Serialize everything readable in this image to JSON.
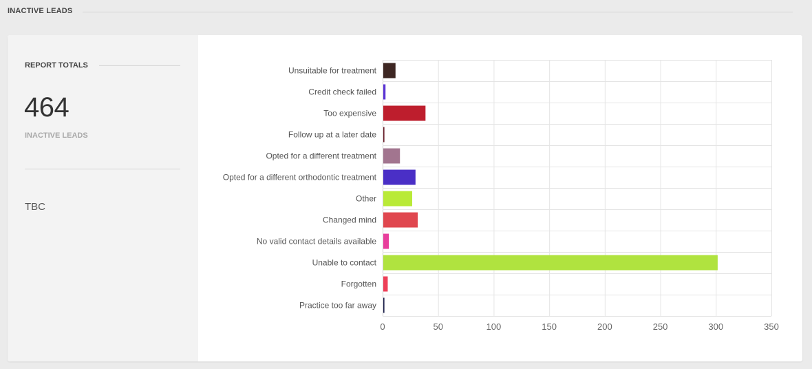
{
  "header": {
    "title": "INACTIVE LEADS"
  },
  "sidebar": {
    "title": "REPORT TOTALS",
    "total_value": "464",
    "total_label": "INACTIVE LEADS",
    "note": "TBC"
  },
  "chart_data": {
    "type": "bar",
    "orientation": "horizontal",
    "title": "",
    "xlabel": "",
    "ylabel": "",
    "xlim": [
      0,
      350
    ],
    "xticks": [
      0,
      50,
      100,
      150,
      200,
      250,
      300,
      350
    ],
    "grid": true,
    "categories": [
      "Unsuitable for treatment",
      "Credit check failed",
      "Too expensive",
      "Follow up at a later date",
      "Opted for a different treatment",
      "Opted for a different orthodontic treatment",
      "Other",
      "Changed mind",
      "No valid contact details available",
      "Unable to contact",
      "Forgotten",
      "Practice too far away"
    ],
    "values": [
      11,
      2,
      38,
      1,
      15,
      29,
      26,
      31,
      5,
      301,
      4,
      1
    ],
    "colors": [
      "#3e2723",
      "#5b35d5",
      "#be1e2d",
      "#6a1f2b",
      "#a2758f",
      "#4a2fc6",
      "#b9ea37",
      "#e0474f",
      "#e83e9c",
      "#b0e33f",
      "#ee3f57",
      "#1c1f4a"
    ]
  }
}
